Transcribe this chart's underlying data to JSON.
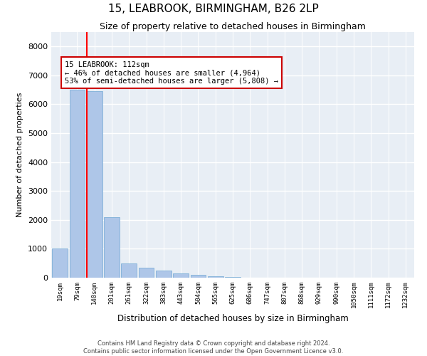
{
  "title": "15, LEABROOK, BIRMINGHAM, B26 2LP",
  "subtitle": "Size of property relative to detached houses in Birmingham",
  "xlabel": "Distribution of detached houses by size in Birmingham",
  "ylabel": "Number of detached properties",
  "bin_labels": [
    "19sqm",
    "79sqm",
    "140sqm",
    "201sqm",
    "261sqm",
    "322sqm",
    "383sqm",
    "443sqm",
    "504sqm",
    "565sqm",
    "625sqm",
    "686sqm",
    "747sqm",
    "807sqm",
    "868sqm",
    "929sqm",
    "990sqm",
    "1050sqm",
    "1111sqm",
    "1172sqm",
    "1232sqm"
  ],
  "bar_heights": [
    1000,
    6500,
    6450,
    2100,
    500,
    350,
    250,
    150,
    100,
    55,
    30,
    5,
    2,
    1,
    0,
    0,
    0,
    0,
    0,
    0,
    0
  ],
  "bar_color": "#aec6e8",
  "bar_edge_color": "#6fa8d4",
  "red_line_x": 1.55,
  "annotation_text": "15 LEABROOK: 112sqm\n← 46% of detached houses are smaller (4,964)\n53% of semi-detached houses are larger (5,808) →",
  "annotation_box_color": "#ffffff",
  "annotation_box_edge": "#cc0000",
  "ylim": [
    0,
    8500
  ],
  "yticks": [
    0,
    1000,
    2000,
    3000,
    4000,
    5000,
    6000,
    7000,
    8000
  ],
  "bg_color": "#e8eef5",
  "grid_color": "#ffffff",
  "footer_line1": "Contains HM Land Registry data © Crown copyright and database right 2024.",
  "footer_line2": "Contains public sector information licensed under the Open Government Licence v3.0."
}
